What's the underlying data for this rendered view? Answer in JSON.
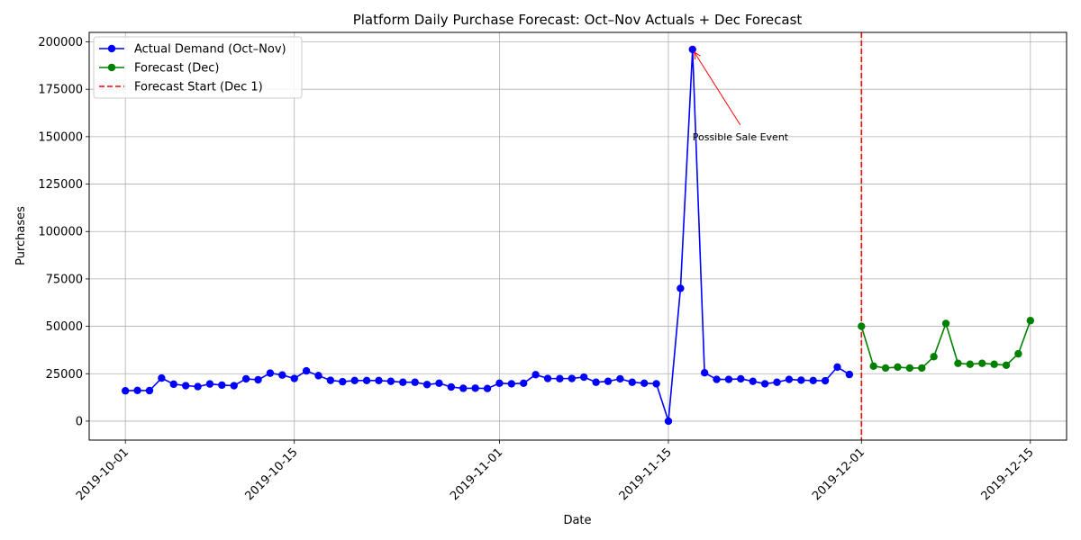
{
  "chart_data": {
    "type": "line",
    "title": "Platform Daily Purchase Forecast: Oct–Nov Actuals + Dec Forecast",
    "xlabel": "Date",
    "ylabel": "Purchases",
    "x_type": "date",
    "xlim": [
      "2019-09-28",
      "2019-12-18"
    ],
    "ylim": [
      -10000,
      205000
    ],
    "x_ticks": [
      "2019-10-01",
      "2019-10-15",
      "2019-11-01",
      "2019-11-15",
      "2019-12-01",
      "2019-12-15"
    ],
    "y_ticks": [
      0,
      25000,
      50000,
      75000,
      100000,
      125000,
      150000,
      175000,
      200000
    ],
    "grid": true,
    "legend_position": "upper-left",
    "series": [
      {
        "name": "Actual Demand (Oct–Nov)",
        "color": "#0000ff",
        "marker": "circle",
        "x": [
          "2019-10-01",
          "2019-10-02",
          "2019-10-03",
          "2019-10-04",
          "2019-10-05",
          "2019-10-06",
          "2019-10-07",
          "2019-10-08",
          "2019-10-09",
          "2019-10-10",
          "2019-10-11",
          "2019-10-12",
          "2019-10-13",
          "2019-10-14",
          "2019-10-15",
          "2019-10-16",
          "2019-10-17",
          "2019-10-18",
          "2019-10-19",
          "2019-10-20",
          "2019-10-21",
          "2019-10-22",
          "2019-10-23",
          "2019-10-24",
          "2019-10-25",
          "2019-10-26",
          "2019-10-27",
          "2019-10-28",
          "2019-10-29",
          "2019-10-30",
          "2019-10-31",
          "2019-11-01",
          "2019-11-02",
          "2019-11-03",
          "2019-11-04",
          "2019-11-05",
          "2019-11-06",
          "2019-11-07",
          "2019-11-08",
          "2019-11-09",
          "2019-11-10",
          "2019-11-11",
          "2019-11-12",
          "2019-11-13",
          "2019-11-14",
          "2019-11-15",
          "2019-11-16",
          "2019-11-17",
          "2019-11-18",
          "2019-11-19",
          "2019-11-20",
          "2019-11-21",
          "2019-11-22",
          "2019-11-23",
          "2019-11-24",
          "2019-11-25",
          "2019-11-26",
          "2019-11-27",
          "2019-11-28",
          "2019-11-29",
          "2019-11-30"
        ],
        "values": [
          16000,
          16200,
          16100,
          22700,
          19500,
          18700,
          18200,
          19600,
          19000,
          18700,
          22300,
          21800,
          25300,
          24300,
          22500,
          26500,
          24000,
          21500,
          20800,
          21400,
          21400,
          21400,
          21000,
          20500,
          20500,
          19300,
          20000,
          18000,
          17300,
          17400,
          17200,
          20000,
          19700,
          20000,
          24500,
          22500,
          22400,
          22500,
          23200,
          20500,
          21000,
          22300,
          20500,
          20000,
          19700,
          0,
          70000,
          196000,
          25500,
          22000,
          22000,
          22300,
          21000,
          19700,
          20500,
          22000,
          21600,
          21400,
          21300,
          28500,
          24600
        ]
      },
      {
        "name": "Forecast (Dec)",
        "color": "#008000",
        "marker": "circle",
        "x": [
          "2019-12-01",
          "2019-12-02",
          "2019-12-03",
          "2019-12-04",
          "2019-12-05",
          "2019-12-06",
          "2019-12-07",
          "2019-12-08",
          "2019-12-09",
          "2019-12-10",
          "2019-12-11",
          "2019-12-12",
          "2019-12-13",
          "2019-12-14",
          "2019-12-15"
        ],
        "values": [
          50000,
          29000,
          28000,
          28500,
          28000,
          28000,
          34000,
          51500,
          30500,
          30000,
          30500,
          30000,
          29500,
          35500,
          53000
        ]
      }
    ],
    "vline": {
      "name": "Forecast Start (Dec 1)",
      "x": "2019-12-01",
      "color": "#ff0000",
      "style": "dashed"
    },
    "annotations": [
      {
        "text": "Possible Sale Event",
        "x": "2019-11-17",
        "y": 196000,
        "text_x": "2019-11-17",
        "text_y": 150000,
        "color": "#ff0000"
      }
    ]
  }
}
